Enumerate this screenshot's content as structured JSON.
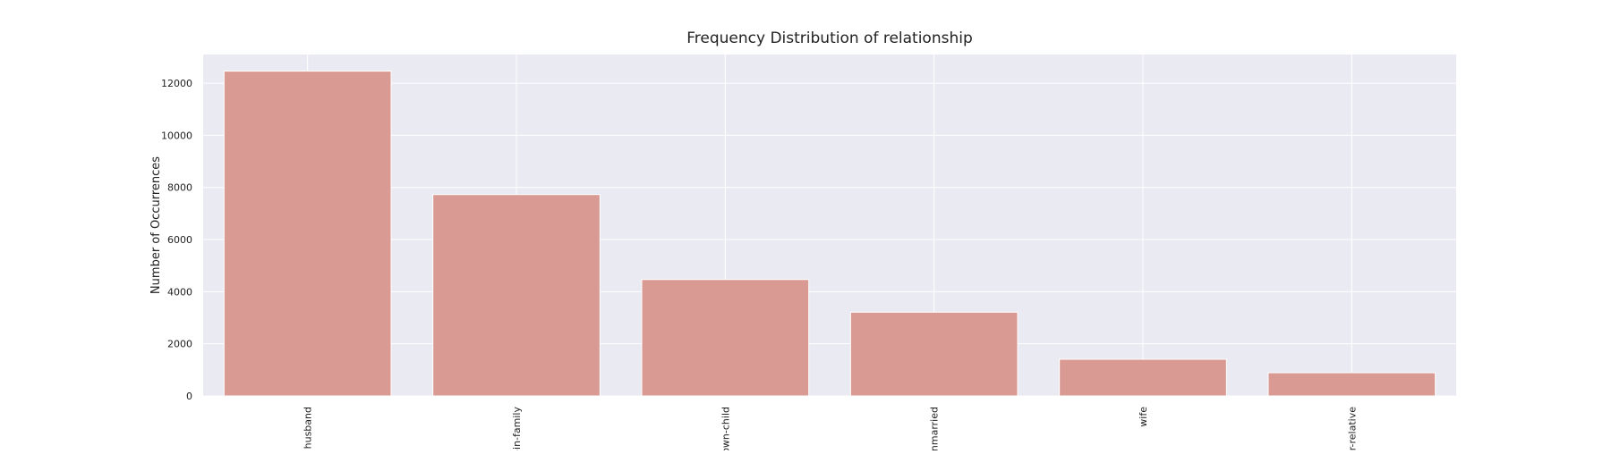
{
  "chart_data": {
    "type": "bar",
    "title": "Frequency Distribution of relationship",
    "xlabel": "",
    "ylabel": "Number of Occurrences",
    "categories": [
      "husband",
      "not-in-family",
      "own-child",
      "unmarried",
      "wife",
      "other-relative"
    ],
    "values": [
      12463,
      7726,
      4466,
      3212,
      1406,
      889
    ],
    "ylim": [
      0,
      13100
    ],
    "yticks": [
      0,
      2000,
      4000,
      6000,
      8000,
      10000,
      12000
    ],
    "ytick_labels": [
      "0",
      "2000",
      "4000",
      "6000",
      "8000",
      "10000",
      "12000"
    ],
    "grid": true,
    "bar_color": "#d99a93",
    "plot_background": "#eaeaf2",
    "grid_color": "#ffffff"
  }
}
